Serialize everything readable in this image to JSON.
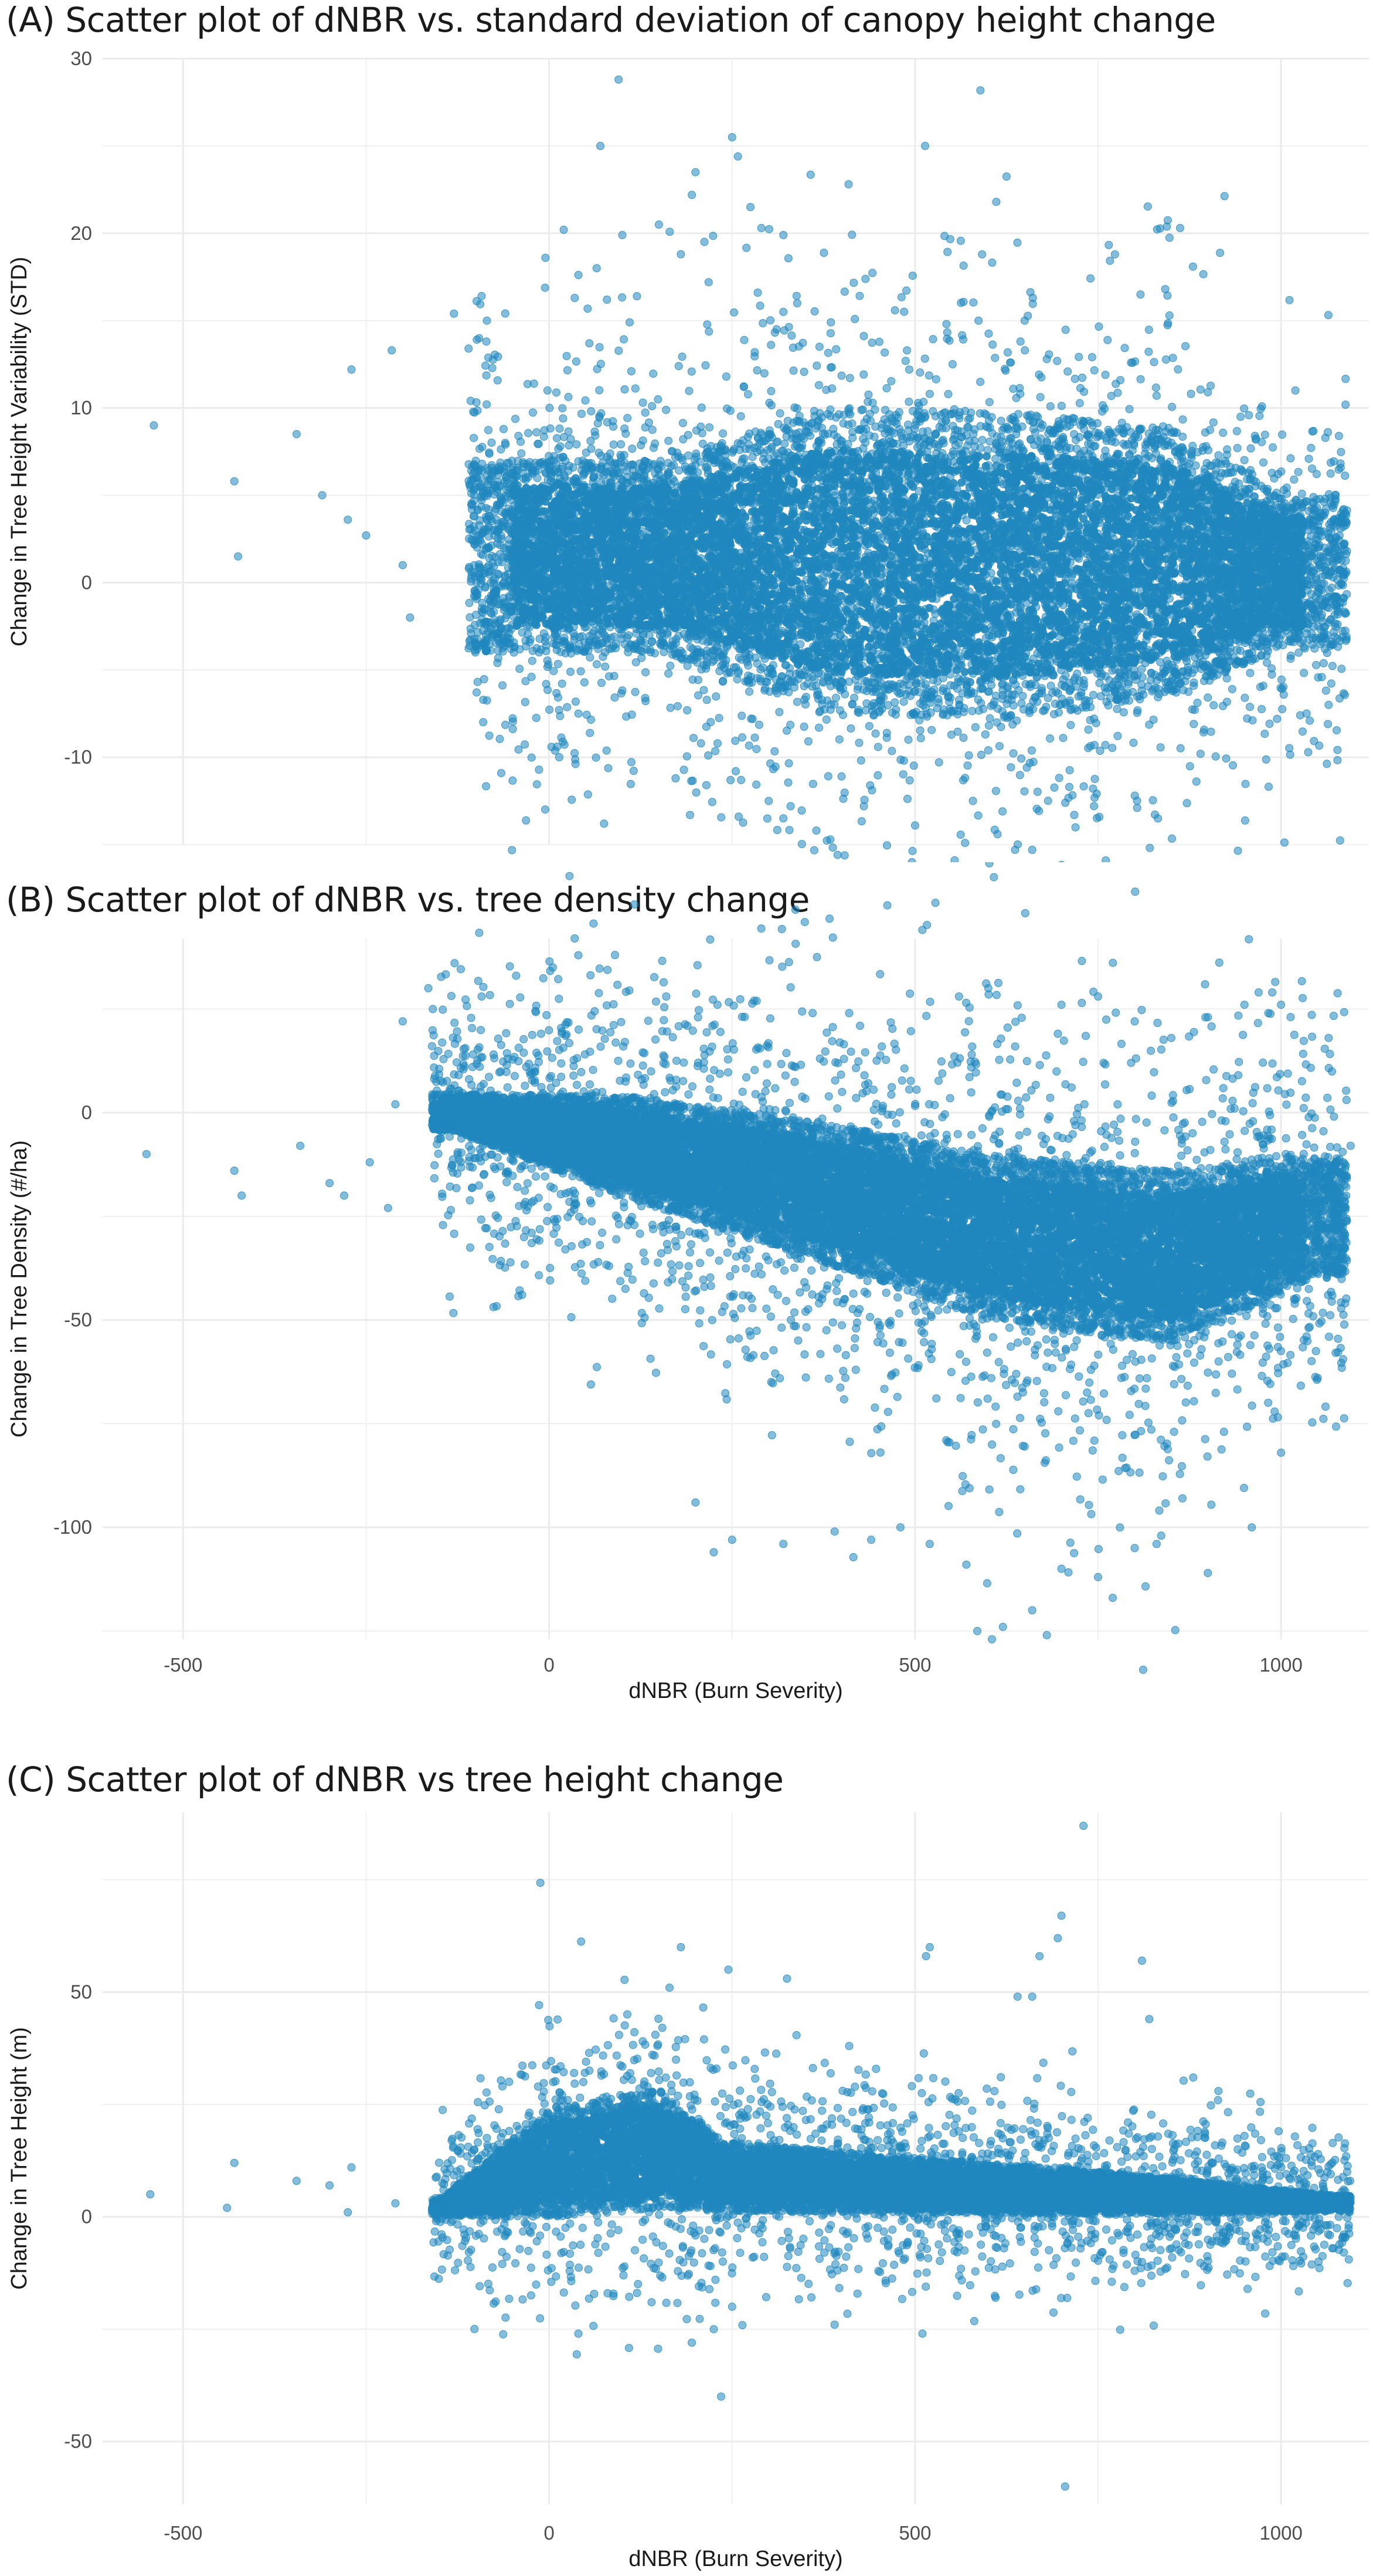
{
  "point_color": "#1f87bd",
  "grid_color": "#ebebeb",
  "chart_data": [
    {
      "id": "A",
      "type": "scatter",
      "title": "(A) Scatter plot of dNBR vs. standard deviation of canopy height change",
      "xlabel": "dNBR (Burn Severity)",
      "ylabel": "Change in Tree Height Variability (STD)",
      "xlim": [
        -610,
        1120
      ],
      "ylim": [
        -15,
        30
      ],
      "xticks": [
        -500,
        0,
        500,
        1000
      ],
      "xticklabels": [
        "-500",
        "0",
        "500",
        "1000"
      ],
      "yticks": [
        -10,
        0,
        10,
        20,
        30
      ],
      "yticklabels": [
        "-10",
        "0",
        "10",
        "20",
        "30"
      ],
      "x_range_main": [
        -110,
        1090
      ],
      "bulk": {
        "n": 9000,
        "centers": [
          [
            160,
            1.5
          ],
          [
            380,
            1.2
          ],
          [
            620,
            1.0
          ],
          [
            850,
            1.2
          ],
          [
            1000,
            0.6
          ]
        ],
        "halfwidth": [
          10,
          16,
          16,
          14,
          8
        ],
        "sd": 1.7,
        "core_limit": [
          -4.5,
          5.8
        ]
      },
      "outliers": [
        [
          -540,
          9
        ],
        [
          -430,
          5.8
        ],
        [
          -425,
          1.5
        ],
        [
          -345,
          8.5
        ],
        [
          -310,
          5
        ],
        [
          -275,
          3.6
        ],
        [
          -270,
          12.2
        ],
        [
          -250,
          2.7
        ],
        [
          -215,
          13.3
        ],
        [
          -200,
          1.0
        ],
        [
          -190,
          -2
        ],
        [
          -130,
          15.4
        ],
        [
          -110,
          13.4
        ],
        [
          -85,
          15.0
        ],
        [
          -60,
          8
        ],
        [
          -5,
          18.6
        ],
        [
          20,
          20.2
        ],
        [
          35,
          16.3
        ],
        [
          55,
          13.7
        ],
        [
          65,
          18.0
        ],
        [
          70,
          25
        ],
        [
          95,
          28.8
        ],
        [
          100,
          19.9
        ],
        [
          110,
          14.9
        ],
        [
          120,
          16.4
        ],
        [
          150,
          20.5
        ],
        [
          180,
          18.8
        ],
        [
          195,
          22.2
        ],
        [
          200,
          23.5
        ],
        [
          218,
          17.2
        ],
        [
          250,
          25.5
        ],
        [
          258,
          24.4
        ],
        [
          275,
          21.5
        ],
        [
          285,
          16.6
        ],
        [
          290,
          20.3
        ],
        [
          320,
          19.9
        ],
        [
          320,
          15.5
        ],
        [
          385,
          14.9
        ],
        [
          520,
          10.8
        ],
        [
          630,
          12.6
        ],
        [
          650,
          13.3
        ],
        [
          680,
          12.8
        ],
        [
          760,
          11.9
        ],
        [
          830,
          10.7
        ],
        [
          900,
          10.9
        ],
        [
          1075,
          2.0
        ],
        [
          1060,
          -3.8
        ],
        [
          1090,
          1.8
        ],
        [
          75,
          -13.8
        ],
        [
          255,
          -10.8
        ],
        [
          300,
          -12.5
        ],
        [
          320,
          -13.5
        ],
        [
          330,
          -12.8
        ],
        [
          430,
          -12.8
        ],
        [
          760,
          -9.3
        ],
        [
          890,
          -9.8
        ],
        [
          1065,
          -7.0
        ],
        [
          40,
          -7.5
        ],
        [
          600,
          -9.6
        ]
      ]
    },
    {
      "id": "B",
      "type": "scatter",
      "title": "(B) Scatter plot of dNBR vs. tree density change",
      "xlabel": "dNBR (Burn Severity)",
      "ylabel": "Change in Tree Density (#/ha)",
      "xlim": [
        -610,
        1120
      ],
      "ylim": [
        -127,
        42
      ],
      "xticks": [
        -500,
        0,
        500,
        1000
      ],
      "xticklabels": [
        "-500",
        "0",
        "500",
        "1000"
      ],
      "yticks": [
        -100,
        -50,
        0
      ],
      "yticklabels": [
        "-100",
        "-50",
        "0"
      ],
      "x_range_main": [
        -160,
        1090
      ],
      "bulk": {
        "n": 11000,
        "centers": [
          [
            -130,
            0
          ],
          [
            100,
            -8
          ],
          [
            350,
            -18
          ],
          [
            600,
            -30
          ],
          [
            850,
            -35
          ],
          [
            1050,
            -25
          ]
        ],
        "halfwidth": [
          8,
          22,
          30,
          36,
          38,
          26
        ],
        "sd": 11,
        "core_limit": [
          -60,
          22
        ]
      },
      "outliers": [
        [
          -550,
          -10
        ],
        [
          -430,
          -14
        ],
        [
          -420,
          -20
        ],
        [
          -340,
          -8
        ],
        [
          -300,
          -17
        ],
        [
          -280,
          -20
        ],
        [
          -245,
          -12
        ],
        [
          -220,
          -23
        ],
        [
          -210,
          2
        ],
        [
          -200,
          22
        ],
        [
          -165,
          30
        ],
        [
          -45,
          33
        ],
        [
          5,
          35
        ],
        [
          35,
          42
        ],
        [
          90,
          38
        ],
        [
          160,
          28
        ],
        [
          230,
          26
        ],
        [
          280,
          27
        ],
        [
          360,
          24
        ],
        [
          410,
          24
        ],
        [
          560,
          28
        ],
        [
          600,
          30
        ],
        [
          700,
          26
        ],
        [
          750,
          28
        ],
        [
          800,
          22
        ],
        [
          850,
          18
        ],
        [
          900,
          23
        ],
        [
          950,
          26
        ],
        [
          1000,
          26
        ],
        [
          1065,
          18
        ],
        [
          225,
          -106
        ],
        [
          200,
          -94
        ],
        [
          250,
          -103
        ],
        [
          320,
          -104
        ],
        [
          390,
          -101
        ],
        [
          440,
          -103
        ],
        [
          480,
          -100
        ],
        [
          520,
          -104
        ],
        [
          570,
          -109
        ],
        [
          585,
          -125
        ],
        [
          605,
          -127
        ],
        [
          620,
          -124
        ],
        [
          660,
          -120
        ],
        [
          680,
          -126
        ],
        [
          700,
          -110
        ],
        [
          750,
          -112
        ],
        [
          770,
          -117
        ],
        [
          800,
          -105
        ],
        [
          830,
          -104
        ],
        [
          900,
          -111
        ],
        [
          960,
          -100
        ],
        [
          1000,
          -82
        ],
        [
          1050,
          -64
        ],
        [
          1095,
          -8
        ]
      ]
    },
    {
      "id": "C",
      "type": "scatter",
      "title": "(C) Scatter plot of dNBR vs tree height change",
      "xlabel": "dNBR (Burn Severity)",
      "ylabel": "Change in Tree Height (m)",
      "xlim": [
        -610,
        1120
      ],
      "ylim": [
        -64,
        90
      ],
      "xticks": [
        -500,
        0,
        500,
        1000
      ],
      "xticklabels": [
        "-500",
        "0",
        "500",
        "1000"
      ],
      "yticks": [
        -50,
        0,
        50
      ],
      "yticklabels": [
        "-50",
        "0",
        "50"
      ],
      "x_range_main": [
        -160,
        1095
      ],
      "bulk": {
        "n": 9000,
        "centers": [
          [
            -150,
            2
          ],
          [
            0,
            12
          ],
          [
            150,
            15
          ],
          [
            240,
            9
          ],
          [
            500,
            7
          ],
          [
            800,
            5
          ],
          [
            1080,
            3
          ]
        ],
        "halfwidth": [
          3,
          22,
          24,
          14,
          11,
          8,
          3
        ],
        "sd": 6,
        "core_limit": [
          -6,
          40
        ]
      },
      "outliers": [
        [
          -545,
          5
        ],
        [
          -440,
          2
        ],
        [
          -430,
          12
        ],
        [
          -345,
          8
        ],
        [
          -300,
          7
        ],
        [
          -270,
          11
        ],
        [
          -275,
          1
        ],
        [
          -210,
          3
        ],
        [
          180,
          60
        ],
        [
          245,
          55
        ],
        [
          325,
          53
        ],
        [
          410,
          38
        ],
        [
          515,
          58
        ],
        [
          520,
          60
        ],
        [
          640,
          49
        ],
        [
          660,
          49
        ],
        [
          670,
          58
        ],
        [
          695,
          62
        ],
        [
          730,
          87
        ],
        [
          700,
          67
        ],
        [
          810,
          57
        ],
        [
          820,
          44
        ],
        [
          880,
          31
        ],
        [
          950,
          18
        ],
        [
          40,
          -26
        ],
        [
          80,
          -17
        ],
        [
          140,
          -19
        ],
        [
          195,
          -28
        ],
        [
          225,
          -25
        ],
        [
          235,
          -40
        ],
        [
          250,
          -20
        ],
        [
          390,
          -24
        ],
        [
          510,
          -26
        ],
        [
          610,
          -18
        ],
        [
          705,
          -60
        ],
        [
          800,
          -12
        ]
      ]
    }
  ]
}
